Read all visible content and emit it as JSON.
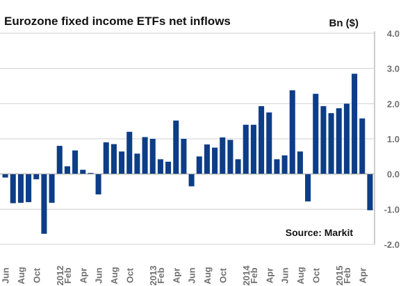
{
  "chart_data": {
    "type": "bar",
    "title": "Eurozone fixed income ETFs net inflows",
    "ylabel": "Bn ($)",
    "source": "Source: Markit",
    "ylim": [
      -2.0,
      4.0
    ],
    "yticks": [
      {
        "value": 4.0,
        "label": "4.0"
      },
      {
        "value": 3.0,
        "label": "3.0"
      },
      {
        "value": 2.0,
        "label": "2.0"
      },
      {
        "value": 1.0,
        "label": "1.0"
      },
      {
        "value": 0.0,
        "label": "0.0"
      },
      {
        "value": -1.0,
        "label": "-1.0"
      },
      {
        "value": -2.0,
        "label": "-2.0"
      }
    ],
    "grid": true,
    "color": "#0d3d87",
    "categories": [
      "Jun 2011",
      "Jul 2011",
      "Aug 2011",
      "Sep 2011",
      "Oct 2011",
      "Nov 2011",
      "Dec 2011",
      "Jan 2012",
      "Feb 2012",
      "Mar 2012",
      "Apr 2012",
      "May 2012",
      "Jun 2012",
      "Jul 2012",
      "Aug 2012",
      "Sep 2012",
      "Oct 2012",
      "Nov 2012",
      "Dec 2012",
      "Jan 2013",
      "Feb 2013",
      "Mar 2013",
      "Apr 2013",
      "May 2013",
      "Jun 2013",
      "Jul 2013",
      "Aug 2013",
      "Sep 2013",
      "Oct 2013",
      "Nov 2013",
      "Dec 2013",
      "Jan 2014",
      "Feb 2014",
      "Mar 2014",
      "Apr 2014",
      "May 2014",
      "Jun 2014",
      "Jul 2014",
      "Aug 2014",
      "Sep 2014",
      "Oct 2014",
      "Nov 2014",
      "Dec 2014",
      "Jan 2015",
      "Feb 2015",
      "Mar 2015",
      "Apr 2015",
      "May 2015"
    ],
    "values": [
      -0.1,
      -0.83,
      -0.82,
      -0.8,
      -0.15,
      -1.7,
      -0.82,
      0.8,
      0.22,
      0.67,
      0.12,
      0.03,
      -0.58,
      0.9,
      0.85,
      0.64,
      1.2,
      0.58,
      1.05,
      1.0,
      0.42,
      0.35,
      1.52,
      1.0,
      -0.35,
      0.5,
      0.84,
      0.75,
      1.04,
      0.97,
      0.42,
      1.4,
      1.4,
      1.93,
      1.75,
      0.42,
      0.53,
      2.38,
      0.64,
      -0.78,
      2.28,
      1.93,
      1.73,
      1.87,
      2.0,
      2.85,
      1.58,
      -1.03
    ],
    "xtick_labels": [
      {
        "index": 0,
        "label": "Jun"
      },
      {
        "index": 2,
        "label": "Aug"
      },
      {
        "index": 4,
        "label": "Oct"
      },
      {
        "index": 7,
        "label": "2012"
      },
      {
        "index": 8,
        "label": "Feb"
      },
      {
        "index": 10,
        "label": "Apr"
      },
      {
        "index": 12,
        "label": "Jun"
      },
      {
        "index": 14,
        "label": "Aug"
      },
      {
        "index": 16,
        "label": "Oct"
      },
      {
        "index": 19,
        "label": "2013"
      },
      {
        "index": 20,
        "label": "Feb"
      },
      {
        "index": 22,
        "label": "Apr"
      },
      {
        "index": 24,
        "label": "Jun"
      },
      {
        "index": 26,
        "label": "Aug"
      },
      {
        "index": 28,
        "label": "Oct"
      },
      {
        "index": 31,
        "label": "2014"
      },
      {
        "index": 32,
        "label": "Feb"
      },
      {
        "index": 34,
        "label": "Apr"
      },
      {
        "index": 36,
        "label": "Jun"
      },
      {
        "index": 38,
        "label": "Aug"
      },
      {
        "index": 40,
        "label": "Oct"
      },
      {
        "index": 43,
        "label": "2015"
      },
      {
        "index": 44,
        "label": "Feb"
      },
      {
        "index": 46,
        "label": "Apr"
      }
    ]
  }
}
